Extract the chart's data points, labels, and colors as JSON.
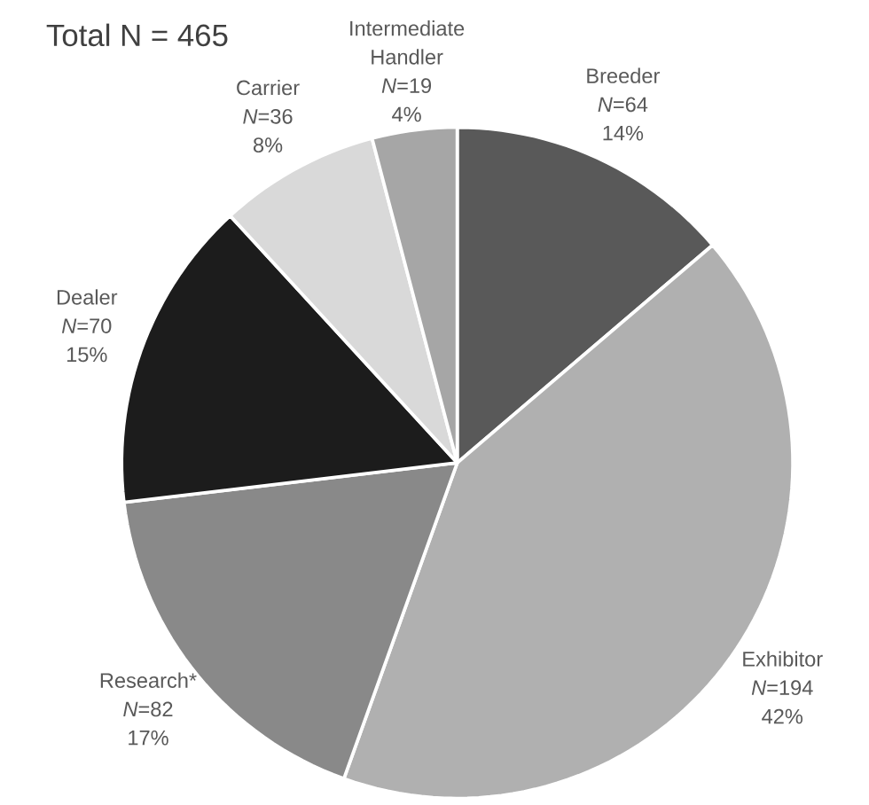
{
  "chart_data": {
    "type": "pie",
    "title": "Total N = 465",
    "categories": [
      "Breeder",
      "Exhibitor",
      "Research*",
      "Dealer",
      "Carrier",
      "Intermediate Handler"
    ],
    "values": [
      64,
      194,
      82,
      70,
      36,
      19
    ],
    "value_labels": [
      "*N*=64",
      "*N*=194",
      "*N*=82",
      "*N*=70",
      "*N*=36",
      "*N*=19"
    ],
    "annotations": [
      "14%",
      "42%",
      "17%",
      "15%",
      "8%",
      "4%"
    ],
    "colors": [
      "#595959",
      "#b0b0b0",
      "#898989",
      "#1c1c1c",
      "#d9d9d9",
      "#a6a6a6"
    ]
  }
}
